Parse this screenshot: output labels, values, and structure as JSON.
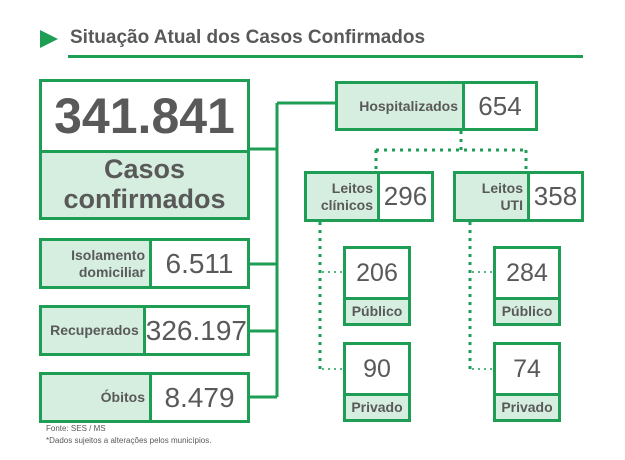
{
  "title": "Situação Atual dos Casos Confirmados",
  "colors": {
    "accent": "#1e9e55",
    "fill": "#d5eee0",
    "text": "#595959"
  },
  "confirmed": {
    "value": "341.841",
    "label_line1": "Casos",
    "label_line2": "confirmados"
  },
  "isolation": {
    "label_line1": "Isolamento",
    "label_line2": "domiciliar",
    "value": "6.511"
  },
  "recovered": {
    "label": "Recuperados",
    "value": "326.197"
  },
  "deaths": {
    "label": "Óbitos",
    "value": "8.479"
  },
  "hospitalized": {
    "label": "Hospitalizados",
    "value": "654"
  },
  "clinical": {
    "label_line1": "Leitos",
    "label_line2": "clínicos",
    "value": "296",
    "public": {
      "value": "206",
      "label": "Público"
    },
    "private": {
      "value": "90",
      "label": "Privado"
    }
  },
  "icu": {
    "label_line1": "Leitos",
    "label_line2": "UTI",
    "value": "358",
    "public": {
      "value": "284",
      "label": "Público"
    },
    "private": {
      "value": "74",
      "label": "Privado"
    }
  },
  "footer": {
    "source": "Fonte: SES / MS",
    "note": "*Dados sujeitos a alterações pelos municípios."
  }
}
